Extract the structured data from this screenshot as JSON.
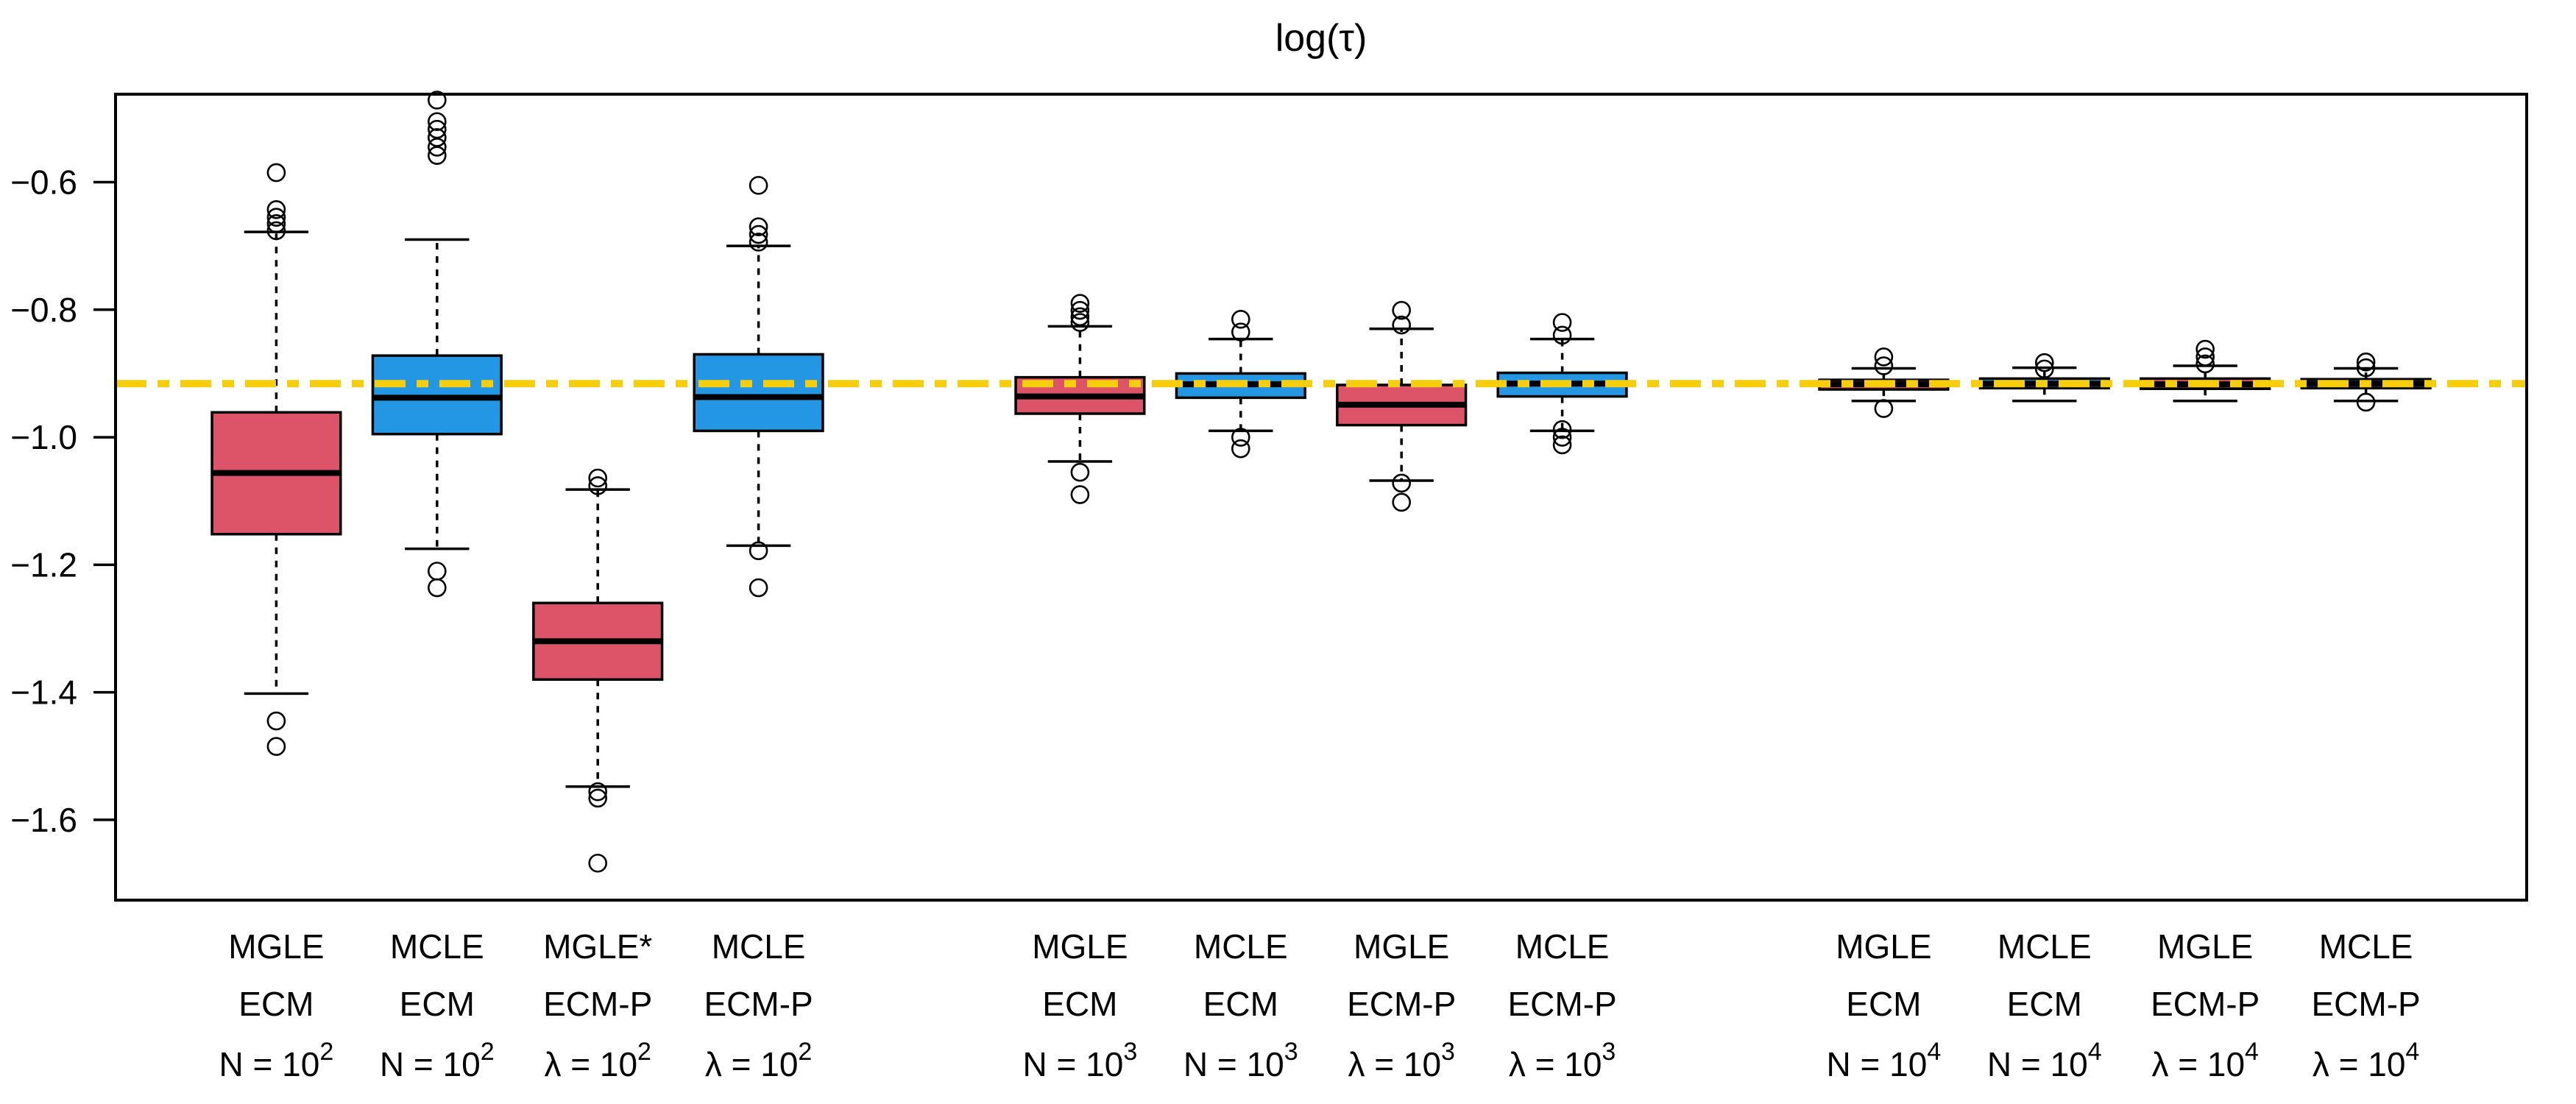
{
  "title": "log(τ)",
  "colors": {
    "mgle_fill": "#DD5468",
    "mcle_fill": "#2397E3",
    "reference_line": "#F6CE0B",
    "axis": "#000000",
    "median": "#000000",
    "background": "#FFFFFF"
  },
  "chart_data": {
    "type": "boxplot",
    "title": "log(τ)",
    "grid": false,
    "legend": false,
    "y_axis": {
      "tick_values": [
        -0.6,
        -0.8,
        -1.0,
        -1.2,
        -1.4,
        -1.6
      ],
      "tick_labels": [
        "−0.6",
        "−0.8",
        "−1.0",
        "−1.2",
        "−1.4",
        "−1.6"
      ],
      "domain": [
        -1.726,
        -0.462
      ]
    },
    "x_axis": {
      "domain": [
        0,
        15
      ],
      "box_half_width_units": 0.4
    },
    "reference_line": {
      "value": -0.916,
      "style": "twodash",
      "color_key": "reference_line"
    },
    "boxes": [
      {
        "position": 1,
        "color_key": "mgle_fill",
        "label_line1": "MGLE",
        "label_line2": "ECM",
        "label_line3_base": "N = 10",
        "label_line3_exp": "2",
        "whisker_low": -1.402,
        "q1": -1.152,
        "median": -1.056,
        "q3": -0.961,
        "whisker_high": -0.678,
        "outliers_high": [
          -0.585,
          -0.643,
          -0.655,
          -0.665,
          -0.676
        ],
        "outliers_low": [
          -1.445,
          -1.485
        ]
      },
      {
        "position": 2,
        "color_key": "mcle_fill",
        "label_line1": "MCLE",
        "label_line2": "ECM",
        "label_line3_base": "N = 10",
        "label_line3_exp": "2",
        "whisker_low": -1.175,
        "q1": -0.995,
        "median": -0.938,
        "q3": -0.872,
        "whisker_high": -0.69,
        "outliers_high": [
          -0.47,
          -0.505,
          -0.517,
          -0.53,
          -0.545,
          -0.558
        ],
        "outliers_low": [
          -1.21,
          -1.236
        ]
      },
      {
        "position": 3,
        "color_key": "mgle_fill",
        "label_line1": "MGLE*",
        "label_line2": "ECM-P",
        "label_line3_base": "λ = 10",
        "label_line3_exp": "2",
        "whisker_low": -1.548,
        "q1": -1.38,
        "median": -1.32,
        "q3": -1.26,
        "whisker_high": -1.082,
        "outliers_high": [
          -1.064,
          -1.076
        ],
        "outliers_low": [
          -1.556,
          -1.566,
          -1.668
        ]
      },
      {
        "position": 4,
        "color_key": "mcle_fill",
        "label_line1": "MCLE",
        "label_line2": "ECM-P",
        "label_line3_base": "λ = 10",
        "label_line3_exp": "2",
        "whisker_low": -1.17,
        "q1": -0.99,
        "median": -0.937,
        "q3": -0.87,
        "whisker_high": -0.7,
        "outliers_high": [
          -0.605,
          -0.67,
          -0.682,
          -0.694
        ],
        "outliers_low": [
          -1.178,
          -1.236
        ]
      },
      {
        "position": 6,
        "color_key": "mgle_fill",
        "label_line1": "MGLE",
        "label_line2": "ECM",
        "label_line3_base": "N = 10",
        "label_line3_exp": "3",
        "whisker_low": -1.038,
        "q1": -0.963,
        "median": -0.936,
        "q3": -0.906,
        "whisker_high": -0.826,
        "outliers_high": [
          -0.79,
          -0.801,
          -0.811,
          -0.82
        ],
        "outliers_low": [
          -1.055,
          -1.09
        ]
      },
      {
        "position": 7,
        "color_key": "mcle_fill",
        "label_line1": "MCLE",
        "label_line2": "ECM",
        "label_line3_base": "N = 10",
        "label_line3_exp": "3",
        "whisker_low": -0.99,
        "q1": -0.938,
        "median": -0.917,
        "q3": -0.9,
        "whisker_high": -0.846,
        "outliers_high": [
          -0.815,
          -0.835
        ],
        "outliers_low": [
          -1.0,
          -1.018
        ]
      },
      {
        "position": 8,
        "color_key": "mgle_fill",
        "label_line1": "MGLE",
        "label_line2": "ECM-P",
        "label_line3_base": "λ = 10",
        "label_line3_exp": "3",
        "whisker_low": -1.068,
        "q1": -0.981,
        "median": -0.949,
        "q3": -0.918,
        "whisker_high": -0.83,
        "outliers_high": [
          -0.801,
          -0.824
        ],
        "outliers_low": [
          -1.072,
          -1.102
        ]
      },
      {
        "position": 9,
        "color_key": "mcle_fill",
        "label_line1": "MCLE",
        "label_line2": "ECM-P",
        "label_line3_base": "λ = 10",
        "label_line3_exp": "3",
        "whisker_low": -0.99,
        "q1": -0.936,
        "median": -0.916,
        "q3": -0.899,
        "whisker_high": -0.846,
        "outliers_high": [
          -0.82,
          -0.84
        ],
        "outliers_low": [
          -0.988,
          -1.0,
          -1.012
        ]
      },
      {
        "position": 11,
        "color_key": "mgle_fill",
        "label_line1": "MGLE",
        "label_line2": "ECM",
        "label_line3_base": "N = 10",
        "label_line3_exp": "4",
        "whisker_low": -0.943,
        "q1": -0.925,
        "median": -0.917,
        "q3": -0.91,
        "whisker_high": -0.892,
        "outliers_high": [
          -0.874,
          -0.888
        ],
        "outliers_low": [
          -0.955
        ]
      },
      {
        "position": 12,
        "color_key": "mcle_fill",
        "label_line1": "MCLE",
        "label_line2": "ECM",
        "label_line3_base": "N = 10",
        "label_line3_exp": "4",
        "whisker_low": -0.943,
        "q1": -0.923,
        "median": -0.916,
        "q3": -0.908,
        "whisker_high": -0.891,
        "outliers_high": [
          -0.883,
          -0.893
        ],
        "outliers_low": []
      },
      {
        "position": 13,
        "color_key": "mgle_fill",
        "label_line1": "MGLE",
        "label_line2": "ECM-P",
        "label_line3_base": "λ = 10",
        "label_line3_exp": "4",
        "whisker_low": -0.943,
        "q1": -0.924,
        "median": -0.917,
        "q3": -0.908,
        "whisker_high": -0.888,
        "outliers_high": [
          -0.862,
          -0.874,
          -0.885
        ],
        "outliers_low": []
      },
      {
        "position": 14,
        "color_key": "mcle_fill",
        "label_line1": "MCLE",
        "label_line2": "ECM-P",
        "label_line3_base": "λ = 10",
        "label_line3_exp": "4",
        "whisker_low": -0.943,
        "q1": -0.923,
        "median": -0.916,
        "q3": -0.909,
        "whisker_high": -0.892,
        "outliers_high": [
          -0.882,
          -0.891
        ],
        "outliers_low": [
          -0.945
        ]
      }
    ]
  }
}
